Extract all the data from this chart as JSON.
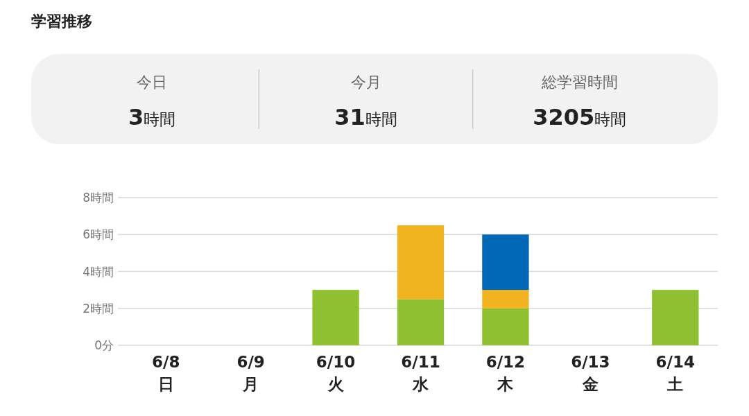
{
  "chart_data": [
    {
      "type": "other",
      "title": "学習推移",
      "annotations": [
        "今日",
        "**3**時間",
        "今月",
        "**31**時間",
        "総学習時間",
        "**3205**時間"
      ]
    },
    {
      "type": "bar",
      "stacked": true,
      "categories": [
        "6/8\n日",
        "6/9\n月",
        "6/10\n火",
        "6/11\n水",
        "6/12\n木",
        "6/13\n金",
        "6/14\n土"
      ],
      "series": [
        {
          "color": "#8fc031",
          "values": [
            0,
            0,
            3,
            2.5,
            2,
            0,
            3
          ]
        },
        {
          "color": "#f2b320",
          "values": [
            0,
            0,
            0,
            4,
            1,
            0,
            0
          ]
        },
        {
          "color": "#0068b7",
          "values": [
            0,
            0,
            0,
            0,
            3,
            0,
            0
          ]
        }
      ],
      "ylim": [
        0,
        8
      ],
      "yticks": [
        {
          "value": 0,
          "label": "0分"
        },
        {
          "value": 2,
          "label": "2時間"
        },
        {
          "value": 4,
          "label": "4時間"
        },
        {
          "value": 6,
          "label": "6時間"
        },
        {
          "value": 8,
          "label": "8時間"
        }
      ],
      "grid": "y"
    }
  ]
}
